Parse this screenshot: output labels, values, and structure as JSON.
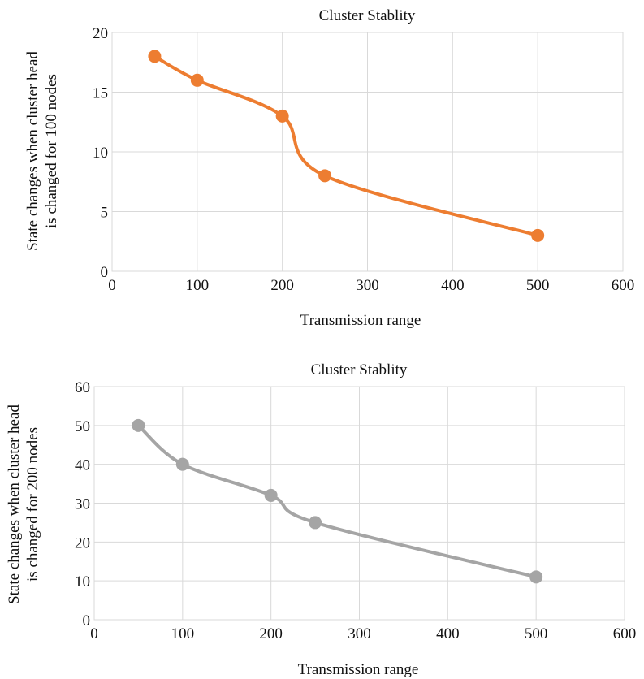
{
  "chart_data": [
    {
      "type": "line",
      "title": "Cluster Stablity",
      "xlabel": "Transmission range",
      "ylabel_lines": [
        "State changes when cluster head",
        "is changed for 100 nodes"
      ],
      "xlim": [
        0,
        600
      ],
      "ylim": [
        0,
        20
      ],
      "xticks": [
        0,
        100,
        200,
        300,
        400,
        500,
        600
      ],
      "yticks": [
        0,
        5,
        10,
        15,
        20
      ],
      "grid": true,
      "smooth": true,
      "color": "#ED7D31",
      "series": [
        {
          "x": [
            50,
            100,
            200,
            250,
            500
          ],
          "y": [
            18,
            16,
            13,
            8,
            3
          ]
        }
      ]
    },
    {
      "type": "line",
      "title": "Cluster Stablity",
      "xlabel": "Transmission range",
      "ylabel_lines": [
        "State changes when cluster head",
        "is changed for 200 nodes"
      ],
      "xlim": [
        0,
        600
      ],
      "ylim": [
        0,
        60
      ],
      "xticks": [
        0,
        100,
        200,
        300,
        400,
        500,
        600
      ],
      "yticks": [
        0,
        10,
        20,
        30,
        40,
        50,
        60
      ],
      "grid": true,
      "smooth": true,
      "color": "#A5A5A5",
      "series": [
        {
          "x": [
            50,
            100,
            200,
            250,
            500
          ],
          "y": [
            50,
            40,
            32,
            25,
            11
          ]
        }
      ]
    }
  ]
}
